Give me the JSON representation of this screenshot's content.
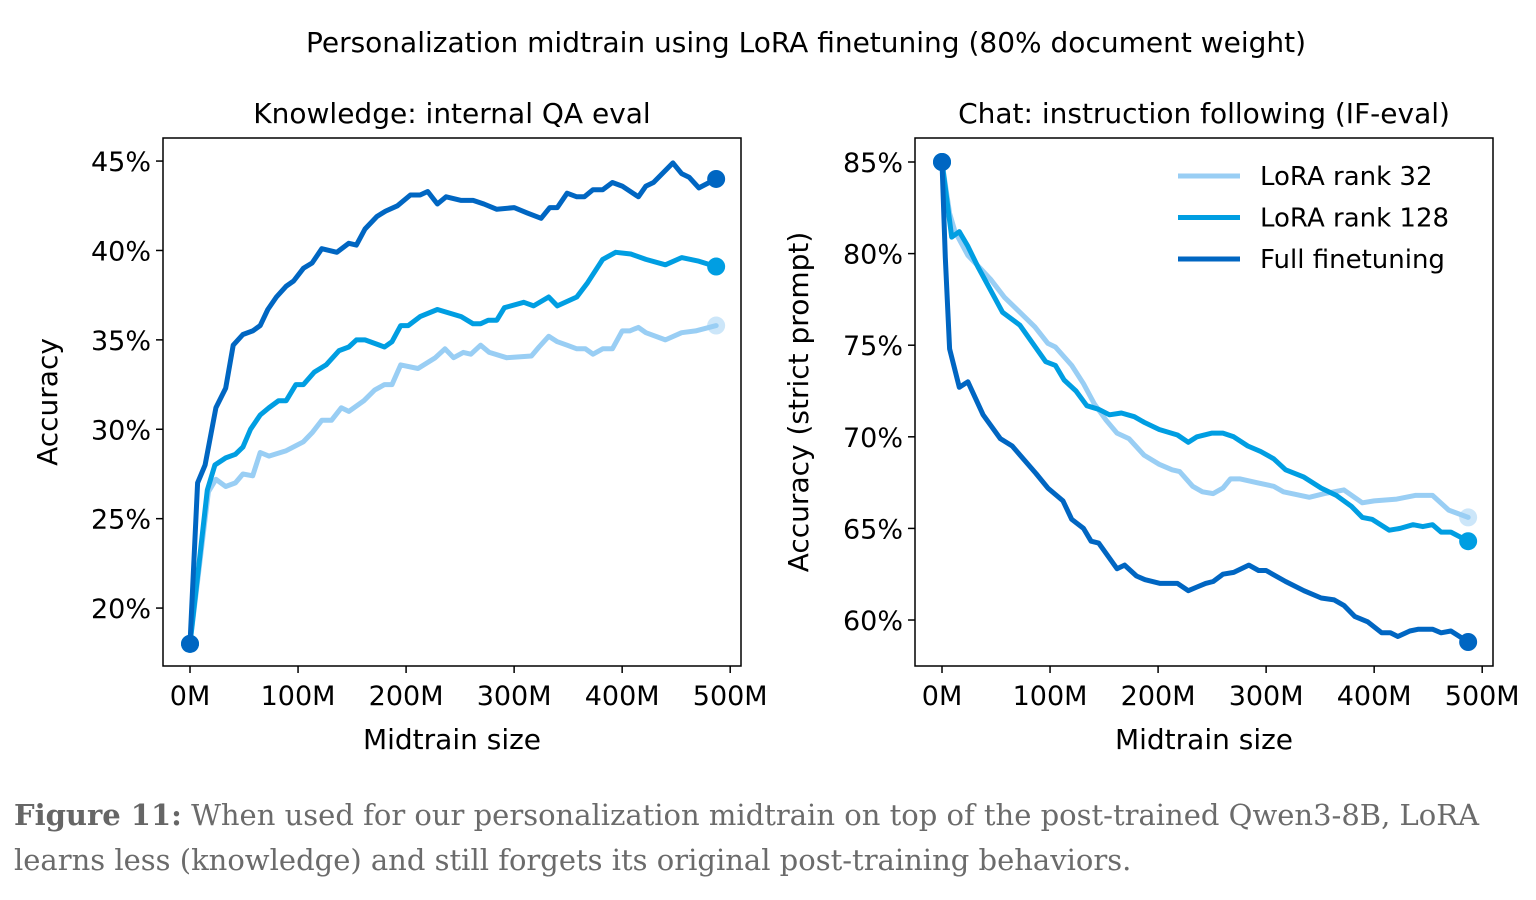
{
  "figure_title": "Personalization midtrain using LoRA finetuning (80% document weight)",
  "caption": {
    "label": "Figure 11:",
    "text": " When used for our personalization midtrain on top of the post-trained Qwen3-8B, LoRA learns less (knowledge) and still forgets its original post-training behaviors."
  },
  "colors": {
    "lora32": "#99cef4",
    "lora128": "#009ee2",
    "full": "#0066c2"
  },
  "chart_data": [
    {
      "type": "line",
      "title": "Knowledge: internal QA eval",
      "xlabel": "Midtrain size",
      "ylabel": "Accuracy",
      "xticks": [
        0,
        100,
        200,
        300,
        400,
        500
      ],
      "xtick_labels": [
        "0M",
        "100M",
        "200M",
        "300M",
        "400M",
        "500M"
      ],
      "yticks": [
        20,
        25,
        30,
        35,
        40,
        45
      ],
      "ytick_labels": [
        "20%",
        "25%",
        "30%",
        "35%",
        "40%",
        "45%"
      ],
      "xlim": [
        -25,
        510
      ],
      "ylim": [
        16.76,
        46.29
      ],
      "grid": false,
      "legend": "none",
      "series": [
        {
          "name": "LoRA rank 32",
          "color_key": "lora32",
          "end_marker_alpha": 0.5,
          "x": [
            0,
            17,
            24,
            33,
            42,
            49,
            58,
            65,
            73,
            89,
            105,
            113,
            122,
            131,
            140,
            147,
            161,
            171,
            180,
            187,
            195,
            211,
            227,
            236,
            244,
            253,
            260,
            269,
            277,
            293,
            316,
            323,
            332,
            340,
            349,
            358,
            366,
            373,
            382,
            391,
            400,
            407,
            415,
            422,
            440,
            455,
            468,
            487
          ],
          "y": [
            18,
            26.5,
            27.2,
            26.8,
            27.0,
            27.5,
            27.4,
            28.7,
            28.5,
            28.8,
            29.3,
            29.8,
            30.5,
            30.5,
            31.2,
            31.0,
            31.6,
            32.2,
            32.5,
            32.5,
            33.6,
            33.4,
            34.0,
            34.5,
            34.0,
            34.3,
            34.2,
            34.7,
            34.3,
            34.0,
            34.1,
            34.6,
            35.2,
            34.9,
            34.7,
            34.5,
            34.5,
            34.2,
            34.5,
            34.5,
            35.5,
            35.5,
            35.7,
            35.4,
            35.0,
            35.4,
            35.5,
            35.8
          ]
        },
        {
          "name": "LoRA rank 128",
          "color_key": "lora128",
          "end_marker_alpha": 1,
          "x": [
            0,
            16,
            23,
            33,
            42,
            49,
            56,
            65,
            73,
            82,
            89,
            98,
            105,
            115,
            126,
            138,
            147,
            154,
            162,
            180,
            187,
            195,
            202,
            213,
            229,
            251,
            262,
            269,
            276,
            284,
            291,
            309,
            318,
            332,
            340,
            358,
            368,
            382,
            394,
            408,
            422,
            440,
            455,
            471,
            487
          ],
          "y": [
            18,
            26.6,
            28.0,
            28.4,
            28.6,
            29.0,
            30.0,
            30.8,
            31.2,
            31.6,
            31.6,
            32.5,
            32.5,
            33.2,
            33.6,
            34.4,
            34.6,
            35.0,
            35.0,
            34.6,
            34.9,
            35.8,
            35.8,
            36.3,
            36.7,
            36.3,
            35.9,
            35.9,
            36.1,
            36.1,
            36.8,
            37.1,
            36.9,
            37.4,
            36.9,
            37.4,
            38.2,
            39.5,
            39.9,
            39.8,
            39.5,
            39.2,
            39.6,
            39.4,
            39.1
          ]
        },
        {
          "name": "Full finetuning",
          "color_key": "full",
          "end_marker_alpha": 1,
          "x": [
            0,
            7,
            14,
            24,
            33,
            40,
            49,
            58,
            65,
            72,
            80,
            89,
            96,
            105,
            113,
            122,
            136,
            147,
            154,
            162,
            173,
            181,
            192,
            204,
            213,
            220,
            229,
            237,
            251,
            262,
            272,
            284,
            300,
            312,
            325,
            333,
            340,
            349,
            358,
            365,
            373,
            382,
            391,
            400,
            415,
            422,
            429,
            447,
            455,
            462,
            471,
            487
          ],
          "y": [
            18,
            27.0,
            28.0,
            31.2,
            32.3,
            34.7,
            35.3,
            35.5,
            35.8,
            36.7,
            37.4,
            38.0,
            38.3,
            39.0,
            39.3,
            40.1,
            39.9,
            40.4,
            40.3,
            41.2,
            41.9,
            42.2,
            42.5,
            43.1,
            43.1,
            43.3,
            42.6,
            43.0,
            42.8,
            42.8,
            42.6,
            42.3,
            42.4,
            42.1,
            41.8,
            42.4,
            42.4,
            43.2,
            43.0,
            43.0,
            43.4,
            43.4,
            43.8,
            43.6,
            43.0,
            43.6,
            43.8,
            44.9,
            44.3,
            44.1,
            43.5,
            44.0
          ]
        }
      ]
    },
    {
      "type": "line",
      "title": "Chat: instruction following (IF-eval)",
      "xlabel": "Midtrain size",
      "ylabel": "Accuracy (strict prompt)",
      "xticks": [
        0,
        100,
        200,
        300,
        400,
        500
      ],
      "xtick_labels": [
        "0M",
        "100M",
        "200M",
        "300M",
        "400M",
        "500M"
      ],
      "yticks": [
        60,
        65,
        70,
        75,
        80,
        85
      ],
      "ytick_labels": [
        "60%",
        "65%",
        "70%",
        "75%",
        "80%",
        "85%"
      ],
      "xlim": [
        -25,
        510
      ],
      "ylim": [
        57.49,
        86.31
      ],
      "grid": false,
      "legend": "top-right",
      "series": [
        {
          "name": "LoRA rank 32",
          "color_key": "lora32",
          "end_marker_alpha": 0.5,
          "x": [
            0,
            7,
            12,
            24,
            37,
            45,
            58,
            72,
            86,
            98,
            105,
            120,
            131,
            141,
            152,
            162,
            173,
            187,
            201,
            213,
            220,
            232,
            241,
            251,
            260,
            267,
            276,
            291,
            307,
            316,
            340,
            354,
            372,
            389,
            400,
            421,
            438,
            454,
            469,
            487
          ],
          "y": [
            85,
            82.2,
            81.2,
            79.9,
            79.1,
            78.6,
            77.6,
            76.8,
            76.0,
            75.1,
            74.9,
            73.9,
            72.9,
            71.8,
            70.9,
            70.2,
            69.9,
            69.0,
            68.5,
            68.2,
            68.1,
            67.3,
            67.0,
            66.9,
            67.2,
            67.7,
            67.7,
            67.5,
            67.3,
            67.0,
            66.7,
            66.9,
            67.1,
            66.4,
            66.5,
            66.6,
            66.8,
            66.8,
            66.0,
            65.6
          ]
        },
        {
          "name": "LoRA rank 128",
          "color_key": "lora128",
          "end_marker_alpha": 1,
          "x": [
            0,
            9,
            16,
            24,
            33,
            45,
            56,
            72,
            84,
            96,
            105,
            113,
            124,
            134,
            145,
            155,
            166,
            178,
            187,
            201,
            218,
            228,
            236,
            250,
            260,
            270,
            283,
            295,
            307,
            318,
            335,
            351,
            365,
            379,
            389,
            398,
            414,
            424,
            436,
            445,
            454,
            462,
            471,
            487
          ],
          "y": [
            85,
            80.9,
            81.2,
            80.4,
            79.3,
            78.0,
            76.8,
            76.1,
            75.1,
            74.1,
            73.9,
            73.1,
            72.5,
            71.7,
            71.5,
            71.2,
            71.3,
            71.1,
            70.8,
            70.4,
            70.1,
            69.7,
            70.0,
            70.2,
            70.2,
            70.0,
            69.5,
            69.2,
            68.8,
            68.2,
            67.8,
            67.2,
            66.8,
            66.2,
            65.6,
            65.5,
            64.9,
            65.0,
            65.2,
            65.1,
            65.2,
            64.8,
            64.8,
            64.3
          ]
        },
        {
          "name": "Full finetuning",
          "color_key": "full",
          "end_marker_alpha": 1,
          "x": [
            0,
            3,
            7,
            16,
            24,
            38,
            54,
            65,
            87,
            98,
            112,
            120,
            131,
            138,
            145,
            162,
            169,
            180,
            188,
            202,
            218,
            228,
            236,
            244,
            251,
            260,
            270,
            284,
            293,
            300,
            318,
            335,
            351,
            363,
            372,
            382,
            394,
            407,
            415,
            422,
            433,
            441,
            454,
            462,
            471,
            487
          ],
          "y": [
            85,
            79.8,
            74.8,
            72.7,
            73.0,
            71.2,
            69.9,
            69.5,
            68.0,
            67.2,
            66.5,
            65.5,
            65.0,
            64.3,
            64.2,
            62.8,
            63.0,
            62.4,
            62.2,
            62.0,
            62.0,
            61.6,
            61.8,
            62.0,
            62.1,
            62.5,
            62.6,
            63.0,
            62.7,
            62.7,
            62.1,
            61.6,
            61.2,
            61.1,
            60.8,
            60.2,
            59.9,
            59.3,
            59.3,
            59.1,
            59.4,
            59.5,
            59.5,
            59.3,
            59.4,
            58.8
          ]
        }
      ]
    }
  ]
}
